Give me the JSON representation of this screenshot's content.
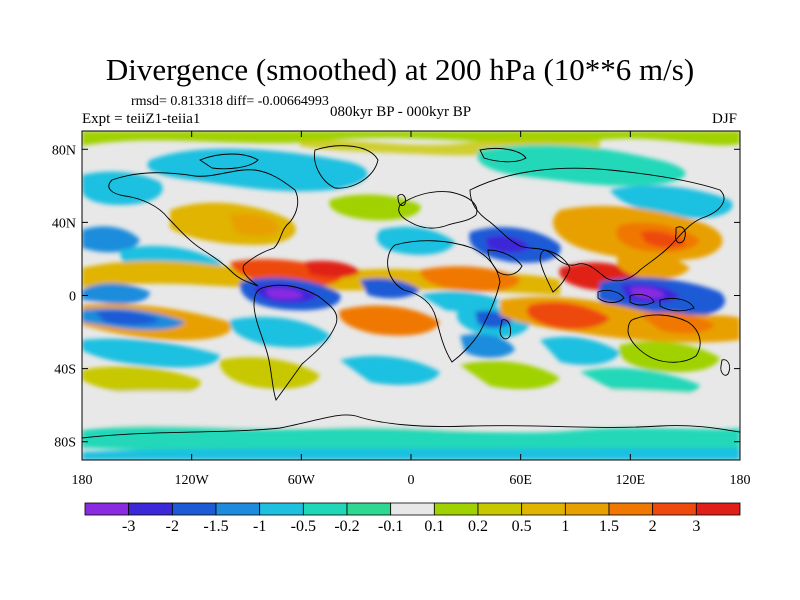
{
  "header": {
    "title": "Divergence (smoothed) at 200 hPa (10**6 m/s)",
    "stats": "rmsd= 0.813318 diff= -0.00664993",
    "expt": "Expt = teiiZ1-teiia1",
    "period": "080kyr BP - 000kyr BP",
    "season": "DJF"
  },
  "map": {
    "projection": "cylindrical-equidistant",
    "lon_range": [
      -180,
      180
    ],
    "lat_range": [
      -90,
      90
    ],
    "lat_ticks": [
      {
        "value": 80,
        "label": "80N"
      },
      {
        "value": 40,
        "label": "40N"
      },
      {
        "value": 0,
        "label": "0"
      },
      {
        "value": -40,
        "label": "40S"
      },
      {
        "value": -80,
        "label": "80S"
      }
    ],
    "lon_ticks": [
      {
        "value": -180,
        "label": "180"
      },
      {
        "value": -120,
        "label": "120W"
      },
      {
        "value": -60,
        "label": "60W"
      },
      {
        "value": 0,
        "label": "0"
      },
      {
        "value": 60,
        "label": "60E"
      },
      {
        "value": 120,
        "label": "120E"
      },
      {
        "value": 180,
        "label": "180"
      }
    ]
  },
  "colorbar": {
    "colors": [
      "#8a2be2",
      "#3c28d8",
      "#1e5ad6",
      "#1e8cdc",
      "#1ec0e0",
      "#20d8b8",
      "#2ed890",
      "#e8e8e8",
      "#a0d200",
      "#c8c800",
      "#e0b400",
      "#e8a000",
      "#f07800",
      "#ee4a10",
      "#e02018"
    ],
    "labels": [
      "-3",
      "-2",
      "-1.5",
      "-1",
      "-0.5",
      "-0.2",
      "-0.1",
      "0.1",
      "0.2",
      "0.5",
      "1",
      "1.5",
      "2",
      "3"
    ]
  }
}
